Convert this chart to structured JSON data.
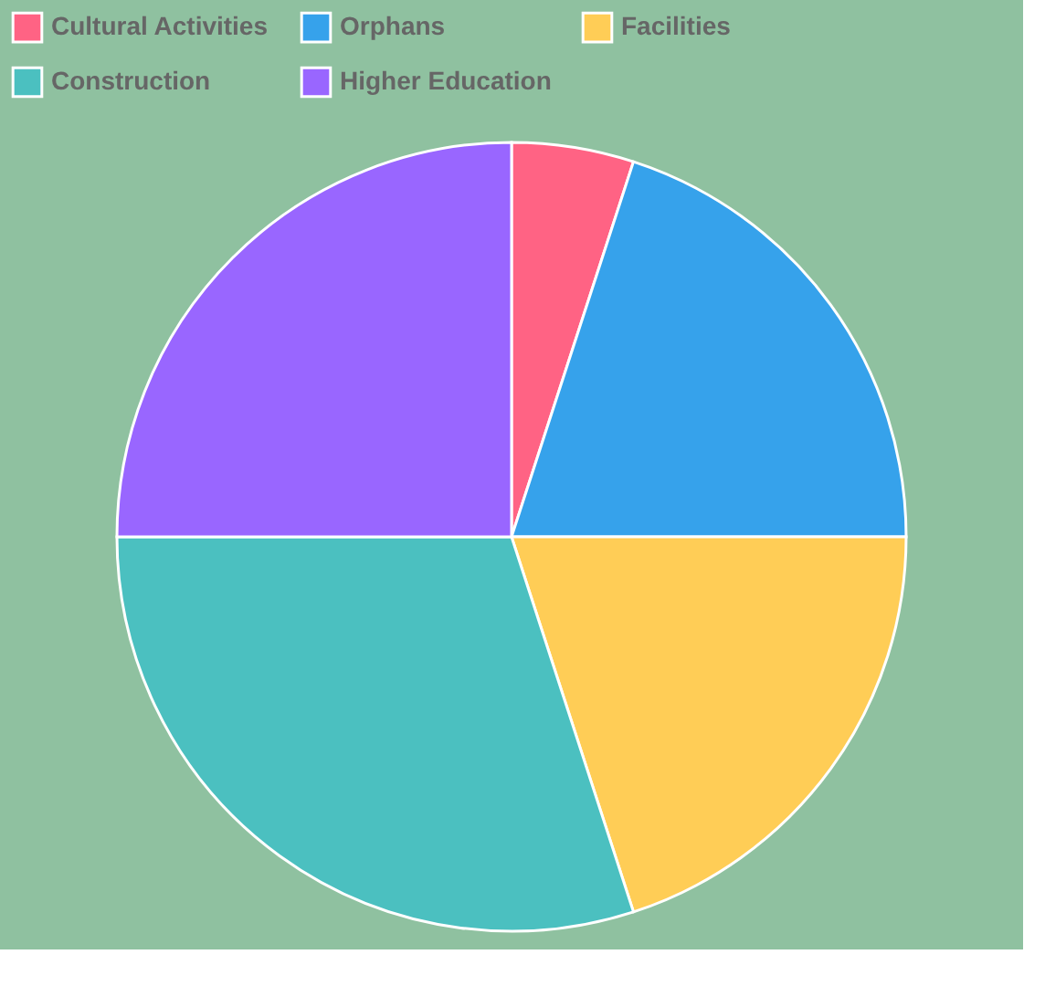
{
  "chart_data": {
    "type": "pie",
    "categories": [
      "Cultural Activities",
      "Orphans",
      "Facilities",
      "Construction",
      "Higher Education"
    ],
    "values": [
      5,
      20,
      20,
      30,
      25
    ],
    "colors": [
      "#ff6384",
      "#36a2eb",
      "#ffcd56",
      "#4bc0c0",
      "#9966ff"
    ],
    "legend": "top"
  }
}
